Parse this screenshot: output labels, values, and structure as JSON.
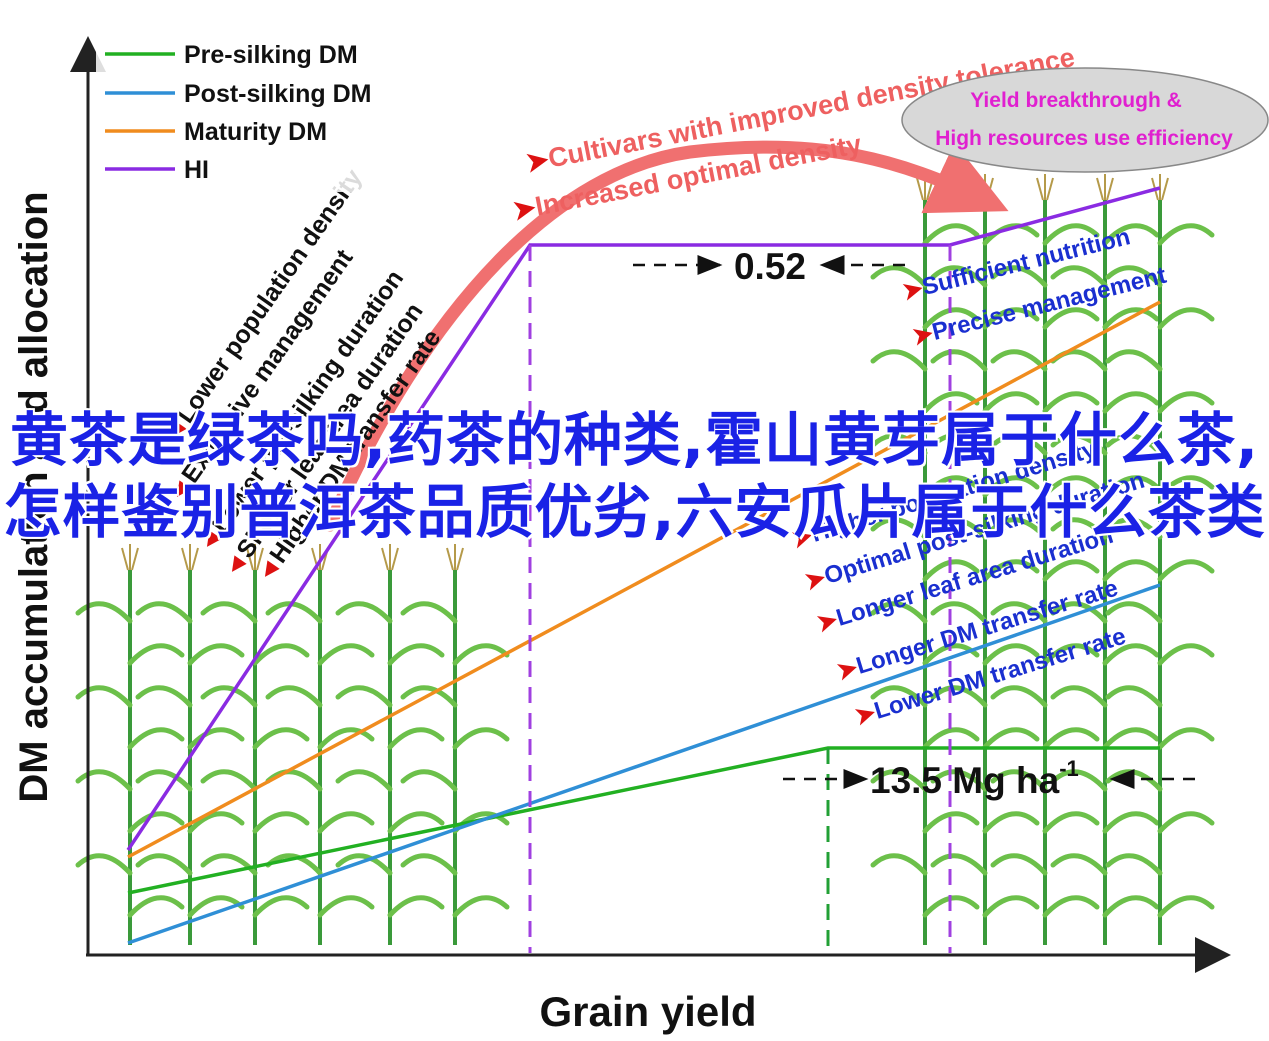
{
  "chart_data": {
    "type": "line",
    "xlabel": "Grain yield",
    "ylabel": "DM accumulation and allocation",
    "series": [
      {
        "name": "Pre-silking DM",
        "color": "#22b022"
      },
      {
        "name": "Post-silking DM",
        "color": "#2f8fd6"
      },
      {
        "name": "Maturity DM",
        "color": "#f08c1e"
      },
      {
        "name": "HI",
        "color": "#8a2be2"
      }
    ],
    "annotations": {
      "hi_value": "0.52",
      "yield_value": "13.5 Mg ha",
      "yield_sup": "-1",
      "arrow_top": "Cultivars with improved density tolerance",
      "arrow_bottom": "Increased optimal density",
      "ellipse_line1": "Yield breakthrough &",
      "ellipse_line2": "High resources use efficiency",
      "left_factors": [
        "Lower population density",
        "Extensive management",
        "Lower pre-silking duration",
        "Shorter leaf area duration",
        "Higher DM transfer rate"
      ],
      "right_factors_top": [
        "Sufficient nutrition",
        "Precise management"
      ],
      "right_factors_bottom": [
        "Higher population density",
        "Optimal post-silking duration",
        "Longer leaf area duration",
        "Longer DM transfer rate",
        "Lower DM transfer rate"
      ]
    }
  },
  "overlay": {
    "title": "黄茶是绿茶吗,药茶的种类,霍山黄芽属于什么茶,怎样鉴别普洱茶品质优劣,六安瓜片属于什么茶类"
  }
}
